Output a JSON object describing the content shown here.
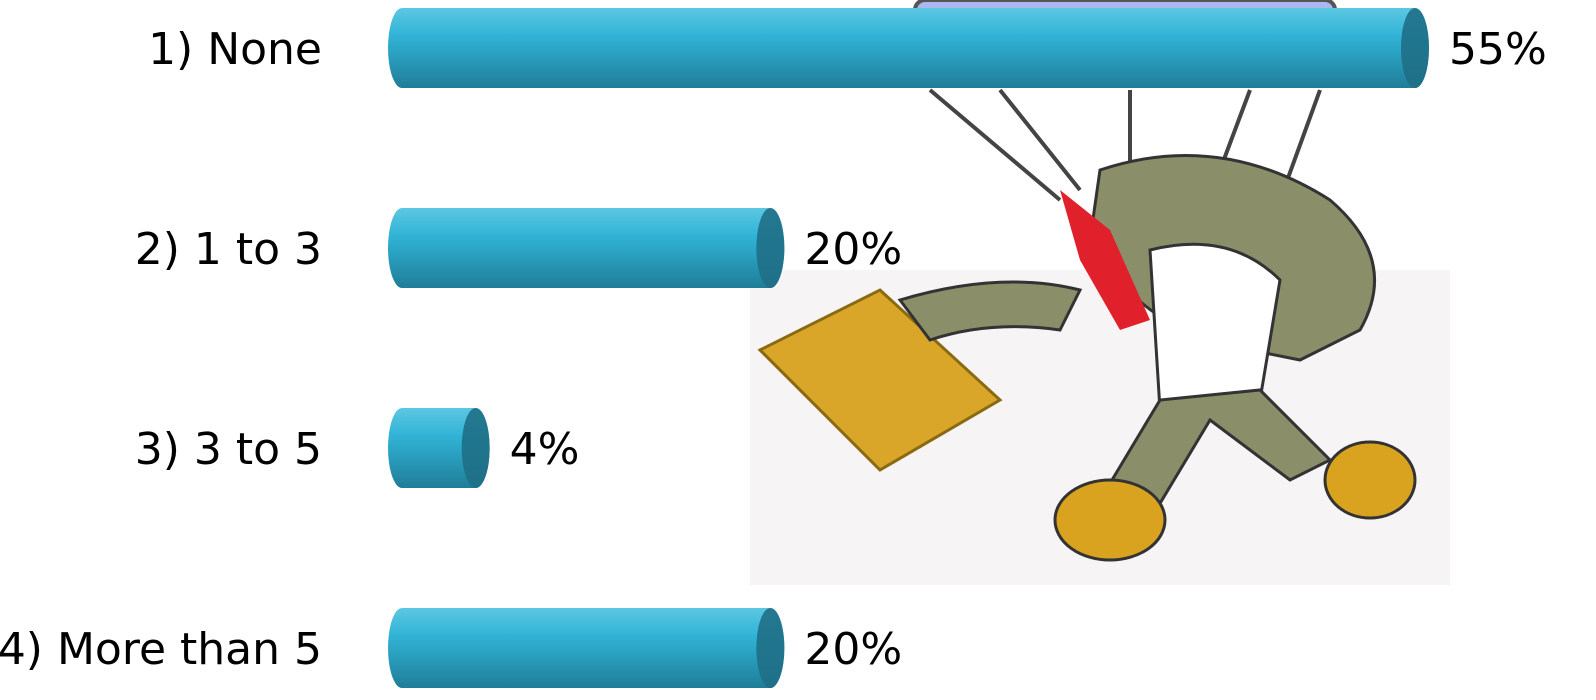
{
  "chart_data": {
    "type": "bar",
    "orientation": "horizontal",
    "categories": [
      "1) None",
      "2) 1 to 3",
      "3) 3 to 5",
      "4) More than 5"
    ],
    "values": [
      55,
      20,
      4,
      20
    ],
    "value_labels": [
      "55%",
      "20%",
      "4%",
      "20%"
    ],
    "color": "#2fb3d6"
  }
}
